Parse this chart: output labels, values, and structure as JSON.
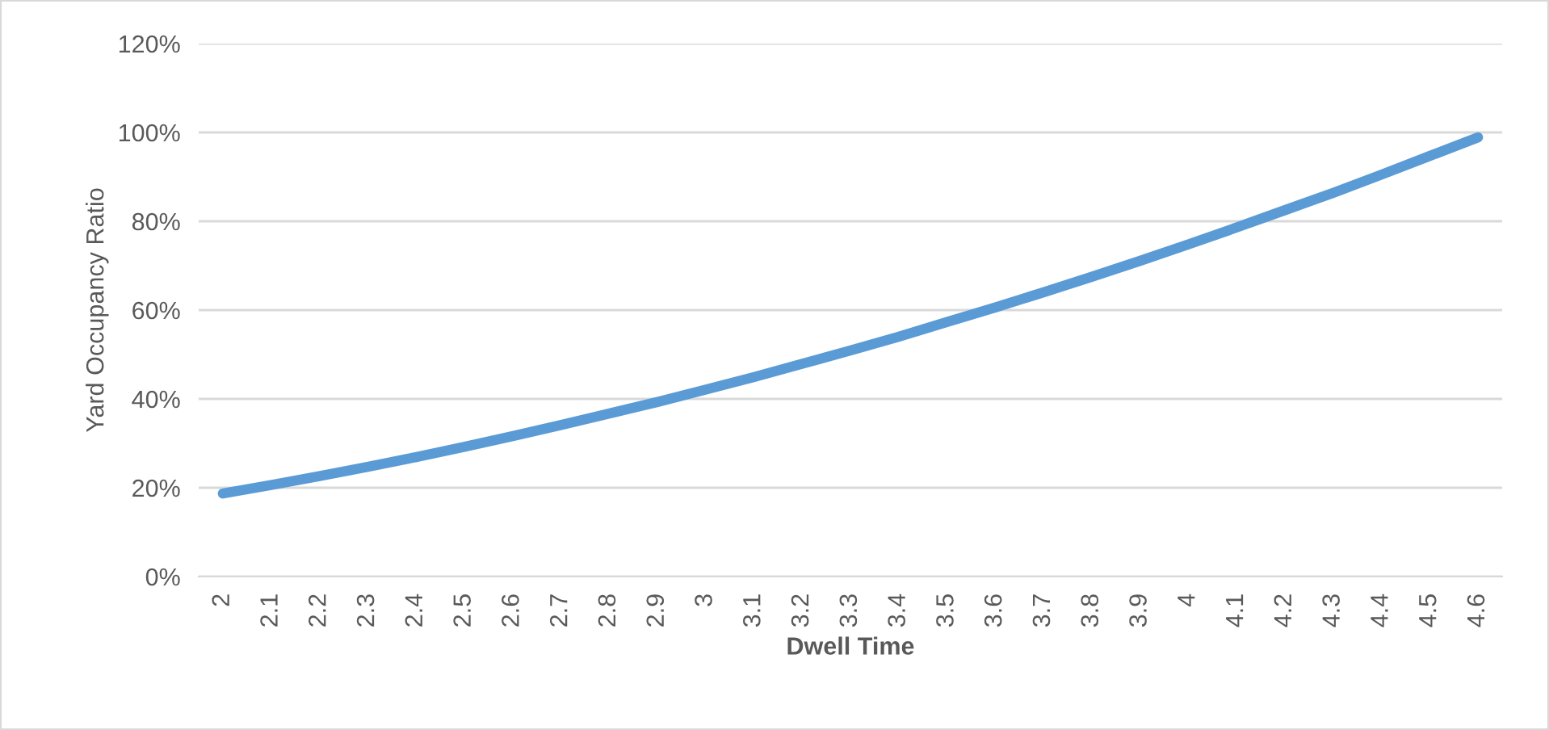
{
  "chart_data": {
    "type": "line",
    "xlabel": "Dwell Time",
    "ylabel": "Yard Occupancy Ratio",
    "categories": [
      "2",
      "2.1",
      "2.2",
      "2.3",
      "2.4",
      "2.5",
      "2.6",
      "2.7",
      "2.8",
      "2.9",
      "3",
      "3.1",
      "3.2",
      "3.3",
      "3.4",
      "3.5",
      "3.6",
      "3.7",
      "3.8",
      "3.9",
      "4",
      "4.1",
      "4.2",
      "4.3",
      "4.4",
      "4.5",
      "4.6"
    ],
    "series": [
      {
        "color": "#5b9bd5",
        "values": [
          18.7,
          20.6,
          22.6,
          24.7,
          26.9,
          29.2,
          31.6,
          34.1,
          36.7,
          39.3,
          42.1,
          44.9,
          47.9,
          50.9,
          54.0,
          57.3,
          60.6,
          64.0,
          67.5,
          71.1,
          74.8,
          78.6,
          82.5,
          86.4,
          90.5,
          94.7,
          98.9
        ]
      }
    ],
    "ylim": [
      0,
      120
    ],
    "yticks": [
      {
        "value": 0,
        "label": "0%"
      },
      {
        "value": 20,
        "label": "20%"
      },
      {
        "value": 40,
        "label": "40%"
      },
      {
        "value": 60,
        "label": "60%"
      },
      {
        "value": 80,
        "label": "80%"
      },
      {
        "value": 100,
        "label": "100%"
      },
      {
        "value": 120,
        "label": "120%"
      }
    ],
    "grid": "y",
    "legend": false,
    "marker": "none",
    "line_style": "solid"
  }
}
